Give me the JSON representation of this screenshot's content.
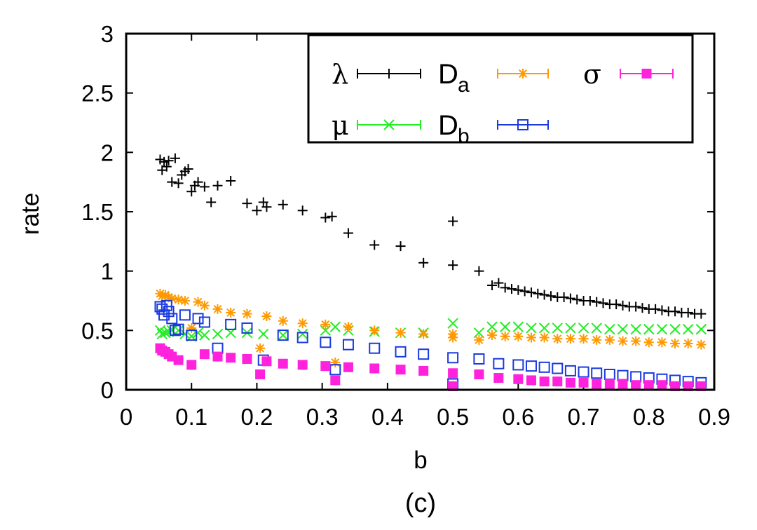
{
  "chart_data": {
    "type": "scatter",
    "title": "",
    "caption": "(c)",
    "xlabel": "b",
    "ylabel": "rate",
    "xlim": [
      0,
      0.9
    ],
    "ylim": [
      0,
      3
    ],
    "xticks": [
      "0",
      "0.1",
      "0.2",
      "0.3",
      "0.4",
      "0.5",
      "0.6",
      "0.7",
      "0.8",
      "0.9"
    ],
    "yticks": [
      "0",
      "0.5",
      "1",
      "1.5",
      "2",
      "2.5",
      "3"
    ],
    "legend_position": "top-right",
    "series": [
      {
        "name": "λ",
        "label_main": "λ",
        "label_sub": "",
        "marker": "plus",
        "color": "#000000",
        "x": [
          0.052,
          0.055,
          0.058,
          0.062,
          0.065,
          0.07,
          0.075,
          0.08,
          0.085,
          0.09,
          0.095,
          0.1,
          0.105,
          0.11,
          0.12,
          0.13,
          0.14,
          0.16,
          0.185,
          0.2,
          0.21,
          0.215,
          0.24,
          0.27,
          0.305,
          0.315,
          0.34,
          0.38,
          0.42,
          0.455,
          0.5,
          0.5,
          0.54,
          0.56,
          0.57,
          0.58,
          0.59,
          0.6,
          0.61,
          0.62,
          0.63,
          0.64,
          0.65,
          0.66,
          0.67,
          0.68,
          0.69,
          0.7,
          0.71,
          0.72,
          0.73,
          0.74,
          0.75,
          0.76,
          0.77,
          0.78,
          0.79,
          0.8,
          0.81,
          0.82,
          0.83,
          0.84,
          0.85,
          0.86,
          0.87,
          0.88
        ],
        "y": [
          1.94,
          1.85,
          1.92,
          1.88,
          1.93,
          1.75,
          1.95,
          1.74,
          1.81,
          1.84,
          1.86,
          1.67,
          1.72,
          1.75,
          1.71,
          1.58,
          1.72,
          1.76,
          1.57,
          1.51,
          1.58,
          1.54,
          1.56,
          1.51,
          1.45,
          1.46,
          1.32,
          1.22,
          1.21,
          1.07,
          1.05,
          1.42,
          1.0,
          0.88,
          0.9,
          0.86,
          0.85,
          0.84,
          0.83,
          0.82,
          0.81,
          0.8,
          0.79,
          0.78,
          0.78,
          0.77,
          0.76,
          0.75,
          0.75,
          0.74,
          0.73,
          0.72,
          0.72,
          0.71,
          0.7,
          0.7,
          0.69,
          0.68,
          0.68,
          0.67,
          0.66,
          0.66,
          0.65,
          0.65,
          0.64,
          0.64
        ]
      },
      {
        "name": "μ",
        "label_main": "μ",
        "label_sub": "",
        "marker": "cross",
        "color": "#22ee22",
        "x": [
          0.052,
          0.055,
          0.06,
          0.065,
          0.07,
          0.08,
          0.09,
          0.1,
          0.11,
          0.12,
          0.14,
          0.16,
          0.185,
          0.21,
          0.24,
          0.27,
          0.305,
          0.32,
          0.34,
          0.38,
          0.42,
          0.455,
          0.5,
          0.54,
          0.56,
          0.58,
          0.6,
          0.62,
          0.64,
          0.66,
          0.68,
          0.7,
          0.72,
          0.74,
          0.76,
          0.78,
          0.8,
          0.82,
          0.84,
          0.86,
          0.88
        ],
        "y": [
          0.5,
          0.47,
          0.48,
          0.49,
          0.5,
          0.5,
          0.47,
          0.45,
          0.48,
          0.46,
          0.47,
          0.48,
          0.48,
          0.47,
          0.46,
          0.47,
          0.5,
          0.53,
          0.5,
          0.49,
          0.48,
          0.48,
          0.56,
          0.48,
          0.53,
          0.53,
          0.53,
          0.52,
          0.52,
          0.52,
          0.52,
          0.52,
          0.52,
          0.51,
          0.51,
          0.51,
          0.51,
          0.51,
          0.51,
          0.51,
          0.51
        ]
      },
      {
        "name": "Da",
        "label_main": "D",
        "label_sub": "a",
        "marker": "star",
        "color": "#ff9900",
        "x": [
          0.052,
          0.055,
          0.06,
          0.065,
          0.07,
          0.08,
          0.09,
          0.1,
          0.11,
          0.12,
          0.14,
          0.16,
          0.185,
          0.205,
          0.215,
          0.24,
          0.27,
          0.305,
          0.32,
          0.34,
          0.38,
          0.42,
          0.455,
          0.5,
          0.5,
          0.54,
          0.56,
          0.58,
          0.6,
          0.62,
          0.64,
          0.66,
          0.68,
          0.7,
          0.72,
          0.74,
          0.76,
          0.78,
          0.8,
          0.82,
          0.84,
          0.86,
          0.88
        ],
        "y": [
          0.81,
          0.79,
          0.8,
          0.78,
          0.77,
          0.76,
          0.75,
          0.52,
          0.74,
          0.71,
          0.68,
          0.65,
          0.64,
          0.35,
          0.62,
          0.58,
          0.56,
          0.55,
          0.23,
          0.53,
          0.5,
          0.48,
          0.47,
          0.47,
          0.44,
          0.42,
          0.46,
          0.45,
          0.45,
          0.44,
          0.44,
          0.43,
          0.43,
          0.43,
          0.42,
          0.42,
          0.41,
          0.41,
          0.4,
          0.4,
          0.39,
          0.39,
          0.38
        ]
      },
      {
        "name": "Db",
        "label_main": "D",
        "label_sub": "b",
        "marker": "square",
        "color": "#1a3adf",
        "x": [
          0.052,
          0.055,
          0.058,
          0.062,
          0.065,
          0.07,
          0.075,
          0.08,
          0.09,
          0.1,
          0.11,
          0.12,
          0.14,
          0.16,
          0.185,
          0.21,
          0.24,
          0.27,
          0.305,
          0.32,
          0.34,
          0.38,
          0.42,
          0.455,
          0.5,
          0.5,
          0.54,
          0.57,
          0.6,
          0.62,
          0.64,
          0.66,
          0.68,
          0.7,
          0.72,
          0.74,
          0.76,
          0.78,
          0.8,
          0.82,
          0.84,
          0.86,
          0.88
        ],
        "y": [
          0.7,
          0.68,
          0.63,
          0.71,
          0.66,
          0.6,
          0.5,
          0.51,
          0.63,
          0.46,
          0.6,
          0.57,
          0.35,
          0.55,
          0.52,
          0.25,
          0.46,
          0.44,
          0.4,
          0.17,
          0.38,
          0.35,
          0.32,
          0.3,
          0.27,
          0.05,
          0.26,
          0.22,
          0.21,
          0.2,
          0.19,
          0.18,
          0.16,
          0.15,
          0.14,
          0.13,
          0.12,
          0.11,
          0.1,
          0.09,
          0.08,
          0.07,
          0.06
        ]
      },
      {
        "name": "σ",
        "label_main": "σ",
        "label_sub": "",
        "marker": "filled-square",
        "color": "#ff22dd",
        "x": [
          0.052,
          0.055,
          0.06,
          0.065,
          0.07,
          0.08,
          0.1,
          0.12,
          0.14,
          0.16,
          0.185,
          0.205,
          0.215,
          0.24,
          0.27,
          0.305,
          0.32,
          0.34,
          0.38,
          0.42,
          0.455,
          0.5,
          0.5,
          0.54,
          0.57,
          0.6,
          0.62,
          0.64,
          0.66,
          0.68,
          0.7,
          0.72,
          0.74,
          0.76,
          0.78,
          0.8,
          0.82,
          0.84,
          0.86,
          0.88
        ],
        "y": [
          0.35,
          0.33,
          0.32,
          0.3,
          0.28,
          0.25,
          0.21,
          0.3,
          0.28,
          0.27,
          0.26,
          0.13,
          0.24,
          0.22,
          0.21,
          0.2,
          0.08,
          0.19,
          0.18,
          0.17,
          0.16,
          0.14,
          0.03,
          0.13,
          0.1,
          0.09,
          0.08,
          0.07,
          0.07,
          0.06,
          0.06,
          0.05,
          0.05,
          0.05,
          0.04,
          0.04,
          0.04,
          0.03,
          0.03,
          0.03
        ]
      }
    ]
  }
}
